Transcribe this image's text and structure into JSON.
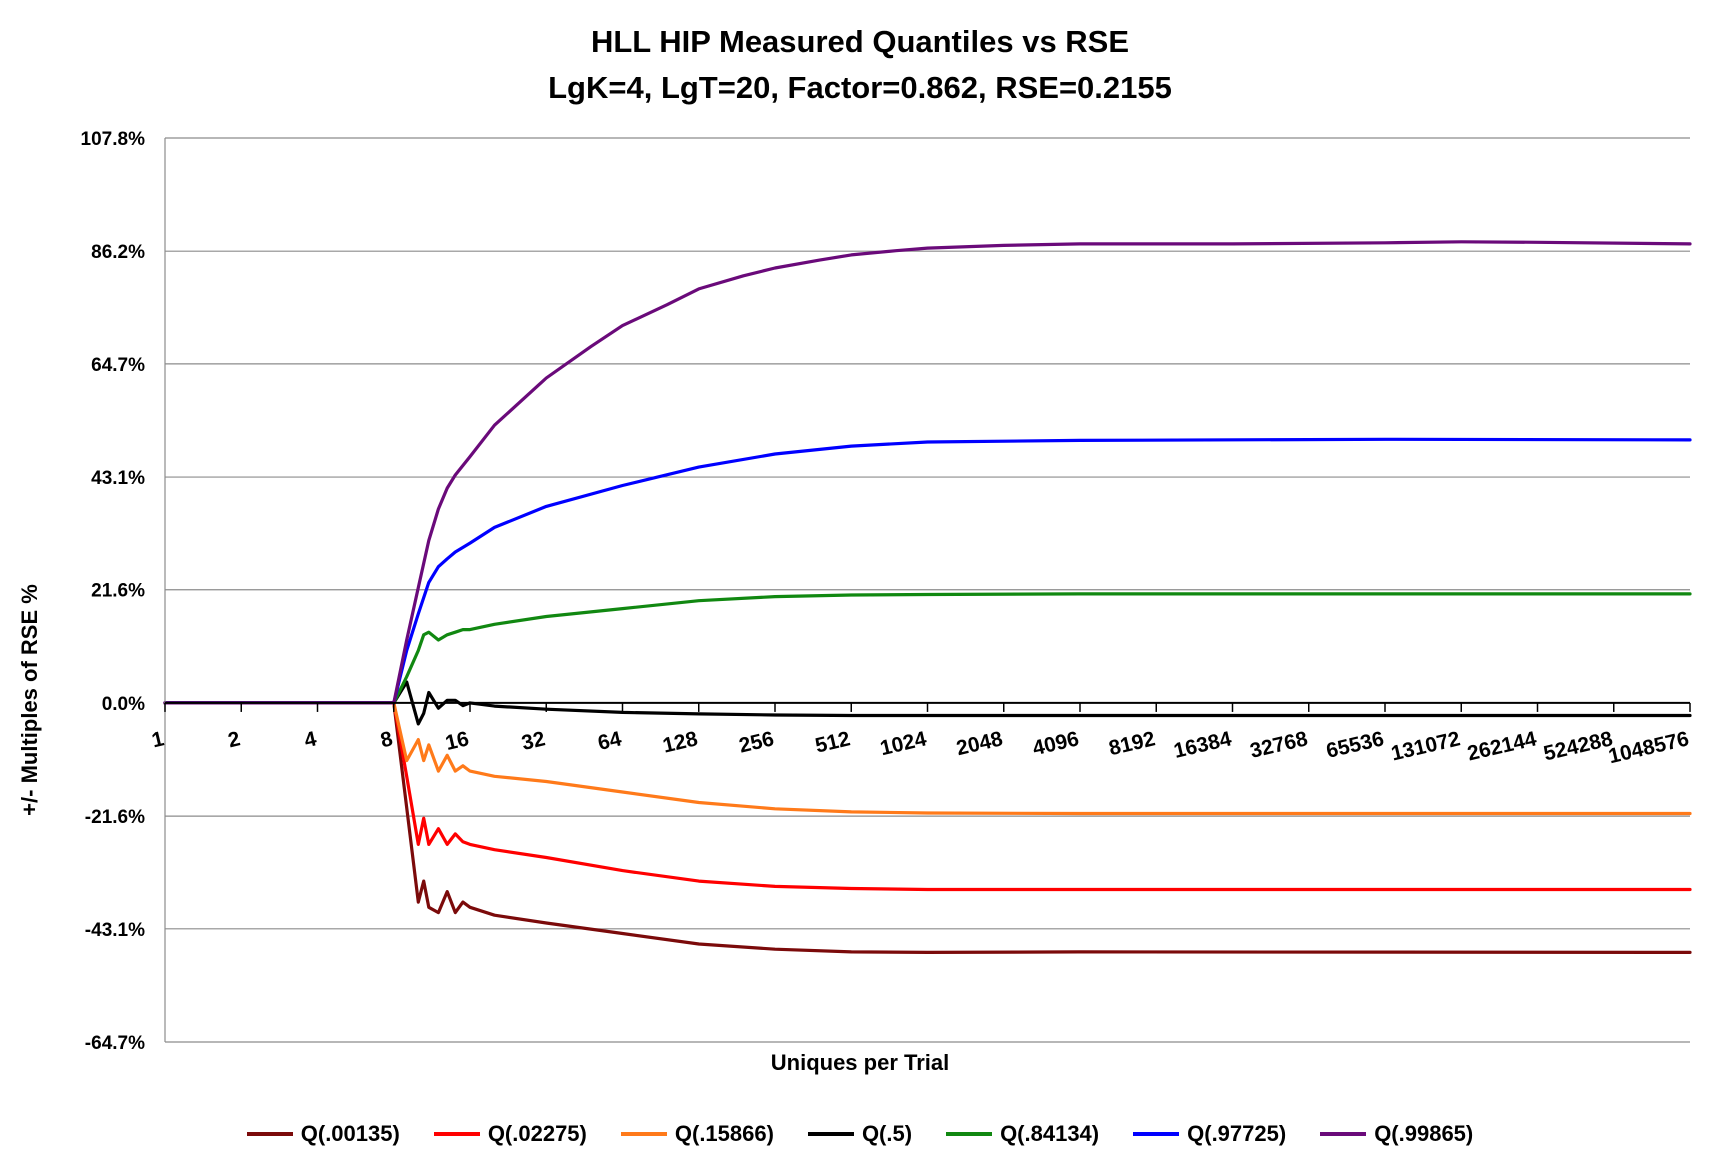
{
  "chart_data": {
    "type": "line",
    "title": "HLL HIP Measured Quantiles vs RSE",
    "subtitle": "LgK=4, LgT=20, Factor=0.862, RSE=0.2155",
    "xlabel": "Uniques per Trial",
    "ylabel": "+/-  Multiples of RSE %",
    "x_scale": "log2",
    "xlim": [
      1,
      1048576
    ],
    "x_ticks": [
      "1",
      "2",
      "4",
      "8",
      "16",
      "32",
      "64",
      "128",
      "256",
      "512",
      "1024",
      "2048",
      "4096",
      "8192",
      "16384",
      "32768",
      "65536",
      "131072",
      "262144",
      "524288",
      "1048576"
    ],
    "y_ticks": [
      "107.8%",
      "86.2%",
      "64.7%",
      "43.1%",
      "21.6%",
      "0.0%",
      "-21.6%",
      "-43.1%",
      "-64.7%"
    ],
    "y_tick_values": [
      107.8,
      86.2,
      64.7,
      43.1,
      21.6,
      0.0,
      -21.6,
      -43.1,
      -64.7
    ],
    "ylim": [
      -64.7,
      107.8
    ],
    "grid": "horizontal",
    "legend_position": "bottom",
    "series": [
      {
        "name": "Q(.00135)",
        "color": "#7b0a0a",
        "points": [
          [
            1,
            0
          ],
          [
            8,
            0
          ],
          [
            9,
            -20
          ],
          [
            10,
            -38
          ],
          [
            10.5,
            -34
          ],
          [
            11,
            -39
          ],
          [
            12,
            -40
          ],
          [
            13,
            -36
          ],
          [
            14,
            -40
          ],
          [
            15,
            -38
          ],
          [
            16,
            -39
          ],
          [
            20,
            -40.5
          ],
          [
            32,
            -42
          ],
          [
            64,
            -44
          ],
          [
            128,
            -46
          ],
          [
            256,
            -47
          ],
          [
            512,
            -47.5
          ],
          [
            1024,
            -47.6
          ],
          [
            4096,
            -47.5
          ],
          [
            1048576,
            -47.6
          ]
        ]
      },
      {
        "name": "Q(.02275)",
        "color": "#ff0000",
        "points": [
          [
            1,
            0
          ],
          [
            8,
            0
          ],
          [
            9,
            -14
          ],
          [
            10,
            -27
          ],
          [
            10.5,
            -22
          ],
          [
            11,
            -27
          ],
          [
            12,
            -24
          ],
          [
            13,
            -27
          ],
          [
            14,
            -25
          ],
          [
            15,
            -26.5
          ],
          [
            16,
            -27
          ],
          [
            20,
            -28
          ],
          [
            32,
            -29.5
          ],
          [
            64,
            -32
          ],
          [
            128,
            -34
          ],
          [
            256,
            -35
          ],
          [
            512,
            -35.4
          ],
          [
            1024,
            -35.6
          ],
          [
            4096,
            -35.6
          ],
          [
            1048576,
            -35.6
          ]
        ]
      },
      {
        "name": "Q(.15866)",
        "color": "#ff7a1a",
        "points": [
          [
            1,
            0
          ],
          [
            8,
            0
          ],
          [
            9,
            -11
          ],
          [
            10,
            -7
          ],
          [
            10.5,
            -11
          ],
          [
            11,
            -8
          ],
          [
            12,
            -13
          ],
          [
            13,
            -10
          ],
          [
            14,
            -13
          ],
          [
            15,
            -12
          ],
          [
            16,
            -13
          ],
          [
            20,
            -14
          ],
          [
            32,
            -15
          ],
          [
            64,
            -17
          ],
          [
            128,
            -19
          ],
          [
            256,
            -20.2
          ],
          [
            512,
            -20.8
          ],
          [
            1024,
            -21
          ],
          [
            4096,
            -21.1
          ],
          [
            1048576,
            -21.1
          ]
        ]
      },
      {
        "name": "Q(.5)",
        "color": "#000000",
        "points": [
          [
            1,
            0
          ],
          [
            8,
            0
          ],
          [
            9,
            4
          ],
          [
            10,
            -4
          ],
          [
            10.5,
            -2
          ],
          [
            11,
            2
          ],
          [
            12,
            -1
          ],
          [
            13,
            0.5
          ],
          [
            14,
            0.5
          ],
          [
            15,
            -0.5
          ],
          [
            16,
            0
          ],
          [
            20,
            -0.6
          ],
          [
            32,
            -1.2
          ],
          [
            64,
            -1.8
          ],
          [
            128,
            -2.1
          ],
          [
            256,
            -2.3
          ],
          [
            512,
            -2.4
          ],
          [
            1024,
            -2.4
          ],
          [
            1048576,
            -2.4
          ]
        ]
      },
      {
        "name": "Q(.84134)",
        "color": "#118811",
        "points": [
          [
            1,
            0
          ],
          [
            8,
            0
          ],
          [
            9,
            5
          ],
          [
            10,
            10
          ],
          [
            10.5,
            13
          ],
          [
            11,
            13.5
          ],
          [
            12,
            12
          ],
          [
            13,
            13
          ],
          [
            14,
            13.5
          ],
          [
            15,
            14
          ],
          [
            16,
            14
          ],
          [
            20,
            15
          ],
          [
            32,
            16.5
          ],
          [
            64,
            18
          ],
          [
            128,
            19.5
          ],
          [
            256,
            20.3
          ],
          [
            512,
            20.6
          ],
          [
            1024,
            20.7
          ],
          [
            4096,
            20.8
          ],
          [
            1048576,
            20.8
          ]
        ]
      },
      {
        "name": "Q(.97725)",
        "color": "#0000ff",
        "points": [
          [
            1,
            0
          ],
          [
            8,
            0
          ],
          [
            9,
            10
          ],
          [
            10,
            17
          ],
          [
            11,
            23
          ],
          [
            12,
            26
          ],
          [
            13,
            27.5
          ],
          [
            14,
            28.8
          ],
          [
            16,
            30.5
          ],
          [
            20,
            33.5
          ],
          [
            32,
            37.5
          ],
          [
            64,
            41.5
          ],
          [
            128,
            45
          ],
          [
            256,
            47.5
          ],
          [
            512,
            49
          ],
          [
            1024,
            49.8
          ],
          [
            4096,
            50.1
          ],
          [
            65536,
            50.3
          ],
          [
            1048576,
            50.2
          ]
        ]
      },
      {
        "name": "Q(.99865)",
        "color": "#6a0a7a",
        "points": [
          [
            1,
            0
          ],
          [
            8,
            0
          ],
          [
            9,
            12
          ],
          [
            10,
            22
          ],
          [
            11,
            31
          ],
          [
            12,
            37
          ],
          [
            13,
            41
          ],
          [
            14,
            43.5
          ],
          [
            16,
            47
          ],
          [
            20,
            53
          ],
          [
            32,
            62
          ],
          [
            48,
            68
          ],
          [
            64,
            72
          ],
          [
            96,
            76
          ],
          [
            128,
            79
          ],
          [
            192,
            81.5
          ],
          [
            256,
            83
          ],
          [
            384,
            84.5
          ],
          [
            512,
            85.5
          ],
          [
            768,
            86.3
          ],
          [
            1024,
            86.8
          ],
          [
            2048,
            87.3
          ],
          [
            4096,
            87.6
          ],
          [
            16384,
            87.6
          ],
          [
            65536,
            87.8
          ],
          [
            131072,
            88
          ],
          [
            262144,
            87.9
          ],
          [
            1048576,
            87.6
          ]
        ]
      }
    ]
  }
}
